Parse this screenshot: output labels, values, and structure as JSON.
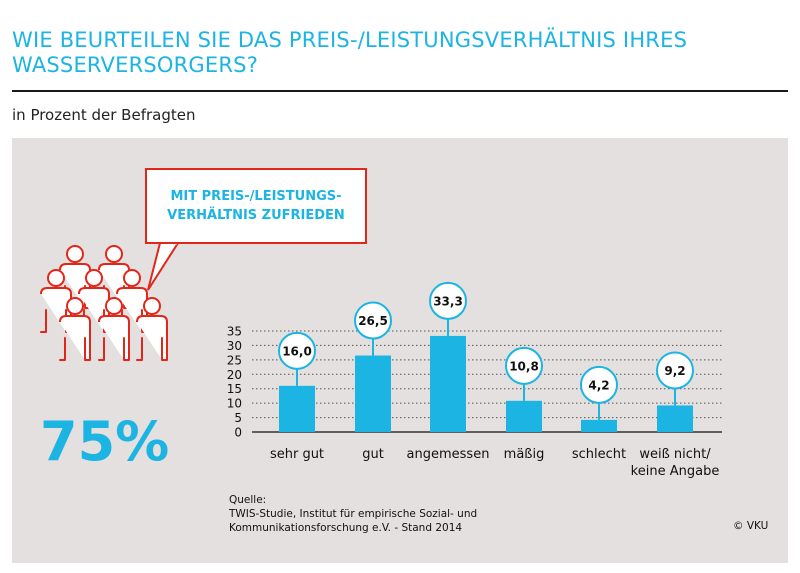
{
  "title": "WIE BEURTEILEN SIE DAS PREIS-/LEISTUNGSVERHÄLTNIS IHRES WASSERVERSORGERS?",
  "subtitle": "in Prozent der Befragten",
  "callout": {
    "line1": "MIT PREIS-/LEISTUNGS-",
    "line2": "VERHÄLTNIS ZUFRIEDEN",
    "percent": "75%"
  },
  "source": {
    "label": "Quelle:",
    "line1": "TWIS-Studie, Institut für empirische Sozial- und",
    "line2": "Kommunikationsforschung e.V. - Stand 2014"
  },
  "copyright": "© VKU",
  "colors": {
    "accent": "#1bb4e3",
    "bubble_border": "#e2261a",
    "panel": "#e3e0df"
  },
  "chart_data": {
    "type": "bar",
    "title": "WIE BEURTEILEN SIE DAS PREIS-/LEISTUNGSVERHÄLTNIS IHRES WASSERVERSORGERS?",
    "ylabel": "in Prozent der Befragten",
    "xlabel": "",
    "ylim": [
      0,
      35
    ],
    "yticks": [
      "0",
      "5",
      "10",
      "15",
      "20",
      "25",
      "30",
      "35"
    ],
    "categories": [
      [
        "sehr gut"
      ],
      [
        "gut"
      ],
      [
        "angemessen"
      ],
      [
        "mäßig"
      ],
      [
        "schlecht"
      ],
      [
        "weiß nicht/",
        "keine Angabe"
      ]
    ],
    "values": [
      16.0,
      26.5,
      33.3,
      10.8,
      4.2,
      9.2
    ],
    "value_labels": [
      "16,0",
      "26,5",
      "33,3",
      "10,8",
      "4,2",
      "9,2"
    ],
    "grid": true
  }
}
